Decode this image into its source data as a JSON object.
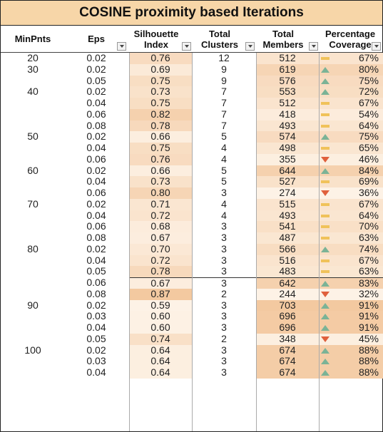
{
  "title": "COSINE proximity based Iterations",
  "headers": {
    "minpnts": "MinPnts",
    "eps": "Eps",
    "silhouette": [
      "Silhouette",
      "Index"
    ],
    "clusters": [
      "Total",
      "Clusters"
    ],
    "members": [
      "Total",
      "Members"
    ],
    "coverage": [
      "Percentage",
      "Coverage"
    ]
  },
  "icons": {
    "up": "green-up-triangle-icon",
    "mid": "yellow-dash-icon",
    "down": "red-down-triangle-icon",
    "filter": "filter-dropdown-icon"
  },
  "colors": {
    "up": "#7bb396",
    "mid": "#f0c25a",
    "down": "#e0603c",
    "header": "#f7d6a8"
  },
  "rows": [
    {
      "minpnts": "20",
      "eps": "0.02",
      "sil": "0.76",
      "sil_level": 0.55,
      "clu": "12",
      "mem": "512",
      "mem_level": 0.35,
      "cov": "67%",
      "trend": "mid"
    },
    {
      "minpnts": "30",
      "eps": "0.02",
      "sil": "0.69",
      "sil_level": 0.2,
      "clu": "9",
      "mem": "619",
      "mem_level": 0.7,
      "cov": "80%",
      "trend": "up"
    },
    {
      "minpnts": "",
      "eps": "0.05",
      "sil": "0.75",
      "sil_level": 0.5,
      "clu": "9",
      "mem": "576",
      "mem_level": 0.55,
      "cov": "75%",
      "trend": "up"
    },
    {
      "minpnts": "40",
      "eps": "0.02",
      "sil": "0.73",
      "sil_level": 0.4,
      "clu": "7",
      "mem": "553",
      "mem_level": 0.5,
      "cov": "72%",
      "trend": "up"
    },
    {
      "minpnts": "",
      "eps": "0.04",
      "sil": "0.75",
      "sil_level": 0.5,
      "clu": "7",
      "mem": "512",
      "mem_level": 0.35,
      "cov": "67%",
      "trend": "mid"
    },
    {
      "minpnts": "",
      "eps": "0.06",
      "sil": "0.82",
      "sil_level": 0.8,
      "clu": "7",
      "mem": "418",
      "mem_level": 0.15,
      "cov": "54%",
      "trend": "mid"
    },
    {
      "minpnts": "",
      "eps": "0.08",
      "sil": "0.78",
      "sil_level": 0.6,
      "clu": "7",
      "mem": "493",
      "mem_level": 0.3,
      "cov": "64%",
      "trend": "mid"
    },
    {
      "minpnts": "50",
      "eps": "0.02",
      "sil": "0.66",
      "sil_level": 0.1,
      "clu": "5",
      "mem": "574",
      "mem_level": 0.55,
      "cov": "75%",
      "trend": "up"
    },
    {
      "minpnts": "",
      "eps": "0.04",
      "sil": "0.75",
      "sil_level": 0.5,
      "clu": "4",
      "mem": "498",
      "mem_level": 0.3,
      "cov": "65%",
      "trend": "mid"
    },
    {
      "minpnts": "",
      "eps": "0.06",
      "sil": "0.76",
      "sil_level": 0.55,
      "clu": "4",
      "mem": "355",
      "mem_level": 0.08,
      "cov": "46%",
      "trend": "down"
    },
    {
      "minpnts": "60",
      "eps": "0.02",
      "sil": "0.66",
      "sil_level": 0.1,
      "clu": "5",
      "mem": "644",
      "mem_level": 0.8,
      "cov": "84%",
      "trend": "up"
    },
    {
      "minpnts": "",
      "eps": "0.04",
      "sil": "0.73",
      "sil_level": 0.4,
      "clu": "5",
      "mem": "527",
      "mem_level": 0.4,
      "cov": "69%",
      "trend": "mid"
    },
    {
      "minpnts": "",
      "eps": "0.06",
      "sil": "0.80",
      "sil_level": 0.7,
      "clu": "3",
      "mem": "274",
      "mem_level": 0.0,
      "cov": "36%",
      "trend": "down"
    },
    {
      "minpnts": "70",
      "eps": "0.02",
      "sil": "0.71",
      "sil_level": 0.3,
      "clu": "4",
      "mem": "515",
      "mem_level": 0.35,
      "cov": "67%",
      "trend": "mid"
    },
    {
      "minpnts": "",
      "eps": "0.04",
      "sil": "0.72",
      "sil_level": 0.35,
      "clu": "4",
      "mem": "493",
      "mem_level": 0.3,
      "cov": "64%",
      "trend": "mid"
    },
    {
      "minpnts": "",
      "eps": "0.06",
      "sil": "0.68",
      "sil_level": 0.15,
      "clu": "3",
      "mem": "541",
      "mem_level": 0.45,
      "cov": "70%",
      "trend": "mid"
    },
    {
      "minpnts": "",
      "eps": "0.08",
      "sil": "0.67",
      "sil_level": 0.12,
      "clu": "3",
      "mem": "487",
      "mem_level": 0.28,
      "cov": "63%",
      "trend": "mid"
    },
    {
      "minpnts": "80",
      "eps": "0.02",
      "sil": "0.70",
      "sil_level": 0.25,
      "clu": "3",
      "mem": "566",
      "mem_level": 0.52,
      "cov": "74%",
      "trend": "up"
    },
    {
      "minpnts": "",
      "eps": "0.04",
      "sil": "0.72",
      "sil_level": 0.35,
      "clu": "3",
      "mem": "516",
      "mem_level": 0.35,
      "cov": "67%",
      "trend": "mid"
    },
    {
      "minpnts": "",
      "eps": "0.05",
      "sil": "0.78",
      "sil_level": 0.6,
      "clu": "3",
      "mem": "483",
      "mem_level": 0.28,
      "cov": "63%",
      "trend": "mid"
    },
    {
      "minpnts": "",
      "eps": "0.06",
      "sil": "0.67",
      "sil_level": 0.12,
      "clu": "3",
      "mem": "642",
      "mem_level": 0.8,
      "cov": "83%",
      "trend": "up"
    },
    {
      "minpnts": "",
      "eps": "0.08",
      "sil": "0.87",
      "sil_level": 1.0,
      "clu": "2",
      "mem": "244",
      "mem_level": 0.0,
      "cov": "32%",
      "trend": "down"
    },
    {
      "minpnts": "90",
      "eps": "0.02",
      "sil": "0.59",
      "sil_level": 0.0,
      "clu": "3",
      "mem": "703",
      "mem_level": 1.0,
      "cov": "91%",
      "trend": "up"
    },
    {
      "minpnts": "",
      "eps": "0.03",
      "sil": "0.60",
      "sil_level": 0.03,
      "clu": "3",
      "mem": "696",
      "mem_level": 0.95,
      "cov": "91%",
      "trend": "up"
    },
    {
      "minpnts": "",
      "eps": "0.04",
      "sil": "0.60",
      "sil_level": 0.03,
      "clu": "3",
      "mem": "696",
      "mem_level": 0.95,
      "cov": "91%",
      "trend": "up"
    },
    {
      "minpnts": "",
      "eps": "0.05",
      "sil": "0.74",
      "sil_level": 0.45,
      "clu": "2",
      "mem": "348",
      "mem_level": 0.08,
      "cov": "45%",
      "trend": "down"
    },
    {
      "minpnts": "100",
      "eps": "0.02",
      "sil": "0.64",
      "sil_level": 0.08,
      "clu": "3",
      "mem": "674",
      "mem_level": 0.9,
      "cov": "88%",
      "trend": "up"
    },
    {
      "minpnts": "",
      "eps": "0.03",
      "sil": "0.64",
      "sil_level": 0.08,
      "clu": "3",
      "mem": "674",
      "mem_level": 0.9,
      "cov": "88%",
      "trend": "up"
    },
    {
      "minpnts": "",
      "eps": "0.04",
      "sil": "0.64",
      "sil_level": 0.08,
      "clu": "3",
      "mem": "674",
      "mem_level": 0.9,
      "cov": "88%",
      "trend": "up"
    }
  ]
}
